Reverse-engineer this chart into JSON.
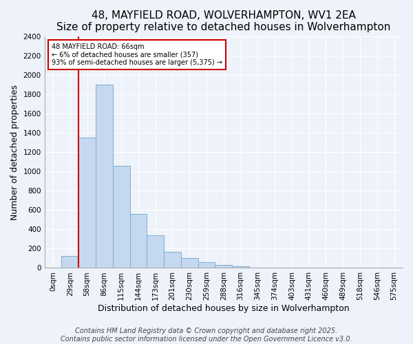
{
  "title": "48, MAYFIELD ROAD, WOLVERHAMPTON, WV1 2EA",
  "subtitle": "Size of property relative to detached houses in Wolverhampton",
  "xlabel": "Distribution of detached houses by size in Wolverhampton",
  "ylabel": "Number of detached properties",
  "footer_line1": "Contains HM Land Registry data © Crown copyright and database right 2025.",
  "footer_line2": "Contains public sector information licensed under the Open Government Licence v3.0.",
  "bar_labels": [
    "0sqm",
    "29sqm",
    "58sqm",
    "86sqm",
    "115sqm",
    "144sqm",
    "173sqm",
    "201sqm",
    "230sqm",
    "259sqm",
    "288sqm",
    "316sqm",
    "345sqm",
    "374sqm",
    "403sqm",
    "431sqm",
    "460sqm",
    "489sqm",
    "518sqm",
    "546sqm",
    "575sqm"
  ],
  "bar_values": [
    0,
    125,
    1350,
    1900,
    1060,
    560,
    335,
    165,
    105,
    60,
    30,
    20,
    5,
    2,
    1,
    0,
    0,
    0,
    0,
    0,
    0
  ],
  "bar_color": "#c5d8ef",
  "bar_edge_color": "#7baed4",
  "ylim": [
    0,
    2400
  ],
  "yticks": [
    0,
    200,
    400,
    600,
    800,
    1000,
    1200,
    1400,
    1600,
    1800,
    2000,
    2200,
    2400
  ],
  "vline_color": "#cc0000",
  "annotation_title": "48 MAYFIELD ROAD: 66sqm",
  "annotation_line2": "← 6% of detached houses are smaller (357)",
  "annotation_line3": "93% of semi-detached houses are larger (5,375) →",
  "background_color": "#eef2fa",
  "grid_color": "#ffffff",
  "title_fontsize": 11,
  "axis_label_fontsize": 9,
  "tick_fontsize": 7.5,
  "footer_fontsize": 7
}
